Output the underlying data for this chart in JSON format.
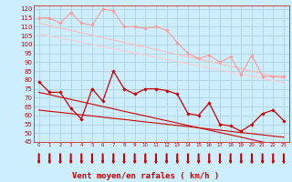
{
  "x": [
    0,
    1,
    2,
    3,
    4,
    5,
    6,
    7,
    8,
    9,
    10,
    11,
    12,
    13,
    14,
    15,
    16,
    17,
    18,
    19,
    20,
    21,
    22,
    23
  ],
  "series": [
    {
      "name": "rafales_max",
      "color": "#ff9999",
      "linewidth": 0.8,
      "marker": "D",
      "markersize": 1.8,
      "values": [
        115,
        115,
        112,
        118,
        112,
        111,
        120,
        119,
        110,
        110,
        109,
        110,
        108,
        101,
        95,
        92,
        94,
        90,
        93,
        83,
        94,
        82,
        82,
        82
      ]
    },
    {
      "name": "rafales_trend1",
      "color": "#ffbbbb",
      "linewidth": 0.8,
      "marker": null,
      "markersize": 0,
      "values": [
        112,
        110.6,
        109.3,
        107.9,
        106.6,
        105.2,
        103.9,
        102.5,
        101.2,
        99.8,
        98.5,
        97.1,
        95.8,
        94.4,
        93.1,
        91.7,
        90.4,
        89.0,
        87.7,
        86.3,
        85.0,
        83.6,
        82.3,
        80.9
      ]
    },
    {
      "name": "rafales_trend2",
      "color": "#ffcccc",
      "linewidth": 0.8,
      "marker": null,
      "markersize": 0,
      "values": [
        106,
        104.8,
        103.6,
        102.4,
        101.2,
        100.0,
        98.8,
        97.6,
        96.4,
        95.2,
        94.0,
        92.8,
        91.6,
        90.4,
        89.2,
        88.0,
        86.8,
        85.6,
        84.4,
        83.2,
        82.0,
        80.8,
        79.6,
        78.4
      ]
    },
    {
      "name": "vent_moyen",
      "color": "#cc0000",
      "linewidth": 0.9,
      "marker": "D",
      "markersize": 1.8,
      "values": [
        79,
        73,
        73,
        64,
        58,
        75,
        68,
        85,
        75,
        72,
        75,
        75,
        74,
        72,
        61,
        60,
        67,
        55,
        54,
        51,
        55,
        61,
        63,
        57
      ]
    },
    {
      "name": "vent_trend1",
      "color": "#cc0000",
      "linewidth": 0.8,
      "marker": null,
      "markersize": 0,
      "values": [
        73,
        71.7,
        70.3,
        69.0,
        67.7,
        66.3,
        65.0,
        63.7,
        62.3,
        61.0,
        59.7,
        58.3,
        57.0,
        55.7,
        54.3,
        53.0,
        51.7,
        50.3,
        49.0,
        47.7,
        46.3,
        45.0,
        43.7,
        42.3
      ]
    },
    {
      "name": "vent_trend2",
      "color": "#cc0000",
      "linewidth": 0.8,
      "marker": null,
      "markersize": 0,
      "values": [
        63,
        62.3,
        61.7,
        61.0,
        60.3,
        59.7,
        59.0,
        58.3,
        57.7,
        57.0,
        56.3,
        55.7,
        55.0,
        54.3,
        53.7,
        53.0,
        52.3,
        51.7,
        51.0,
        50.3,
        49.7,
        49.0,
        48.3,
        47.7
      ]
    }
  ],
  "ylim": [
    45,
    122
  ],
  "yticks": [
    45,
    50,
    55,
    60,
    65,
    70,
    75,
    80,
    85,
    90,
    95,
    100,
    105,
    110,
    115,
    120
  ],
  "xlabel": "Vent moyen/en rafales ( km/h )",
  "background_color": "#cceeff",
  "grid_color": "#aaccdd",
  "text_color": "#cc0000",
  "arrow_color": "#cc0000"
}
